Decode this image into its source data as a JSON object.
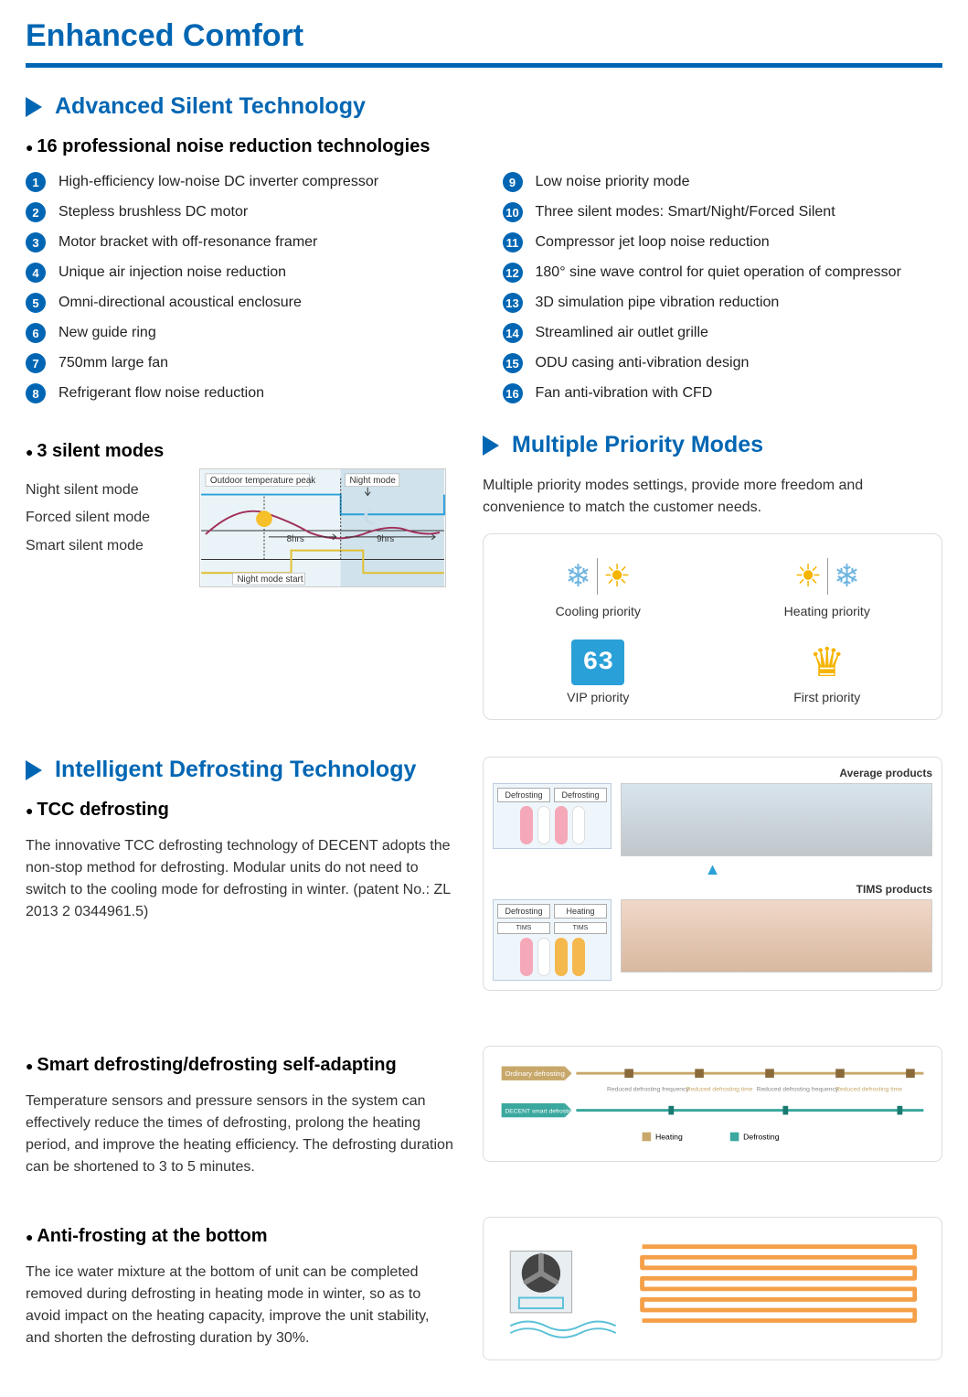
{
  "colors": {
    "brand_blue": "#0066b3",
    "snow_blue": "#6db4e0",
    "sun_yellow": "#f5b400",
    "vip_blue": "#2aa0d8",
    "pink": "#f5a8b8",
    "orange": "#f5b84d",
    "ordinary_tan": "#c8a86a",
    "decent_teal": "#3aa89e",
    "coil_orange": "#f5a048"
  },
  "page_title": "Enhanced Comfort",
  "sections": {
    "silent": {
      "title": "Advanced Silent Technology",
      "sub1": "16 professional noise reduction technologies",
      "items_left": [
        "High-efficiency low-noise DC inverter compressor",
        "Stepless brushless DC motor",
        "Motor bracket with off-resonance framer",
        "Unique air injection noise reduction",
        "Omni-directional acoustical enclosure",
        "New guide ring",
        "750mm large fan",
        "Refrigerant flow noise reduction"
      ],
      "items_right": [
        "Low noise priority mode",
        "Three silent modes: Smart/Night/Forced Silent",
        "Compressor jet loop noise reduction",
        "180° sine wave control for quiet operation of compressor",
        "3D simulation pipe vibration reduction",
        "Streamlined air outlet grille",
        "ODU casing anti-vibration design",
        "Fan anti-vibration with CFD"
      ],
      "sub2": "3 silent modes",
      "modes": [
        "Night silent mode",
        "Forced silent mode",
        "Smart silent mode"
      ],
      "chart": {
        "label_peak": "Outdoor temperature peak",
        "label_night": "Night mode",
        "label_start": "Night mode start",
        "label_8hr": "8hrs",
        "label_9hr": "9hrs",
        "curve_color": "#a0305a",
        "step_color": "#2aa0d8",
        "step2_color": "#e0c030",
        "arrow_color": "#333"
      }
    },
    "priority": {
      "title": "Multiple Priority Modes",
      "body": "Multiple priority modes settings, provide more freedom and convenience to match the customer needs.",
      "cells": [
        {
          "label": "Cooling priority"
        },
        {
          "label": "Heating priority"
        },
        {
          "label": "VIP priority",
          "value": "63"
        },
        {
          "label": "First priority"
        }
      ]
    },
    "defrost": {
      "title": "Intelligent Defrosting Technology",
      "tcc": {
        "heading": "TCC defrosting",
        "body": "The innovative TCC defrosting technology of DECENT adopts the non-stop method for defrosting. Modular units do not need to switch to the cooling mode for defrosting in winter. (patent No.: ZL 2013 2 0344961.5)",
        "diagram": {
          "avg_label": "Average products",
          "tims_label": "TIMS products",
          "tab_defrost": "Defrosting",
          "tab_heating": "Heating",
          "tab_tims": "TIMS"
        }
      },
      "smart": {
        "heading": "Smart defrosting/defrosting self-adapting",
        "body": "Temperature sensors and pressure sensors in the system can effectively reduce the times of defrosting, prolong the heating period, and improve the heating efficiency. The defrosting duration can be shortened to 3 to 5 minutes.",
        "timeline": {
          "ordinary_label": "Ordinary defrosting",
          "decent_label": "DECENT smart defrosting",
          "reduced_freq": "Reduced defrosting frequency",
          "reduced_time": "Reduced defrosting time",
          "legend_heating": "Heating",
          "legend_defrost": "Defrosting"
        }
      },
      "antifrost": {
        "heading": "Anti-frosting at the bottom",
        "body": "The ice water mixture at the bottom of unit can be completed removed during defrosting in heating mode in winter, so as to avoid impact on the heating capacity, improve the unit stability, and shorten the defrosting duration by 30%."
      }
    }
  }
}
